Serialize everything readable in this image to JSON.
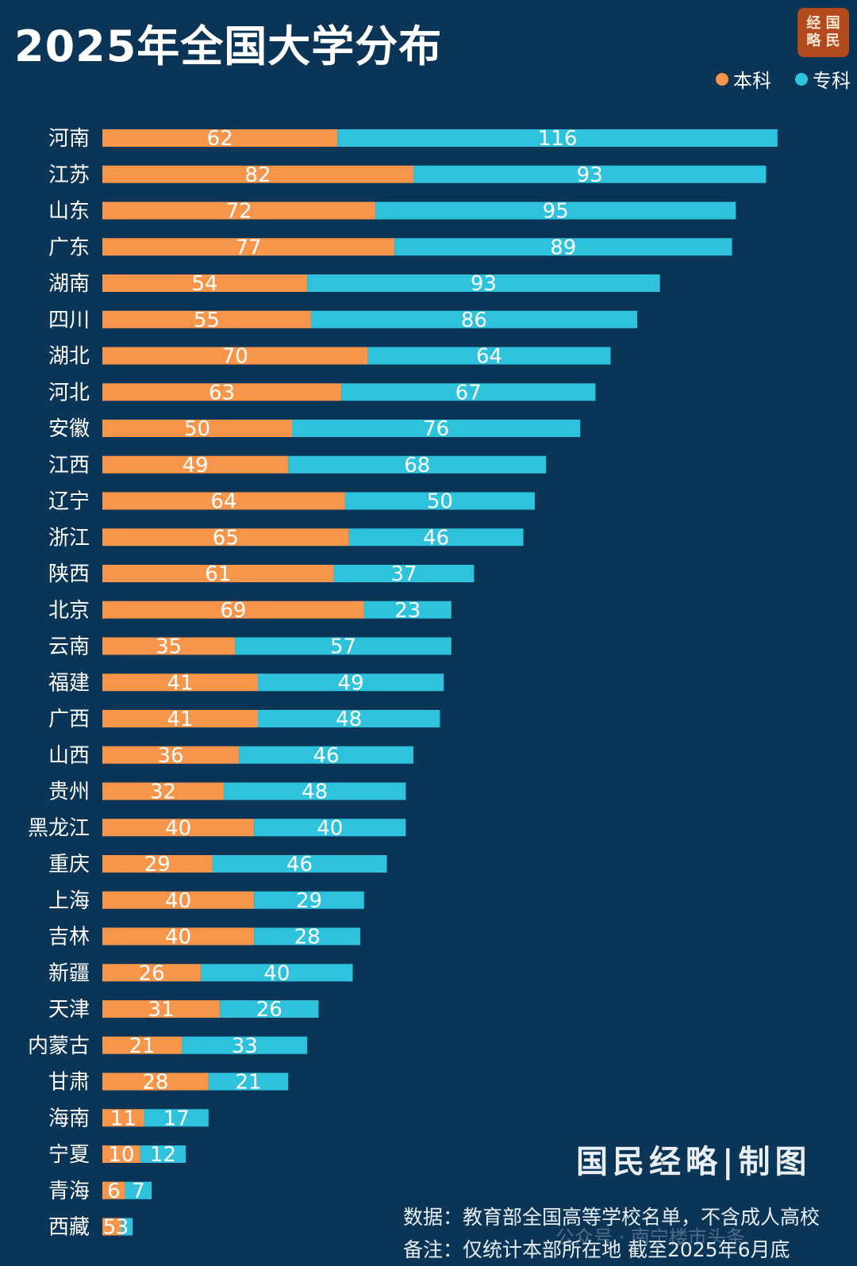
{
  "title": "2025年全国大学分布",
  "brand_seal": "经国略民",
  "signature": "国民经略|制图",
  "notes": {
    "source": "数据：教育部全国高等学校名单，不含成人高校",
    "remark": "备注：仅统计本部所在地 截至2025年6月底"
  },
  "watermark": "公众号 · 南宁楼市头条",
  "colors": {
    "background": "#0b3557",
    "undergrad": "#f7954a",
    "junior": "#2ec2dc"
  },
  "chart_data": {
    "type": "bar",
    "orientation": "horizontal",
    "stacked": true,
    "title": "2025年全国大学分布",
    "categories": [
      "河南",
      "江苏",
      "山东",
      "广东",
      "湖南",
      "四川",
      "湖北",
      "河北",
      "安徽",
      "江西",
      "辽宁",
      "浙江",
      "陕西",
      "北京",
      "云南",
      "福建",
      "广西",
      "山西",
      "贵州",
      "黑龙江",
      "重庆",
      "上海",
      "吉林",
      "新疆",
      "天津",
      "内蒙古",
      "甘肃",
      "海南",
      "宁夏",
      "青海",
      "西藏"
    ],
    "series": [
      {
        "name": "本科",
        "color": "#f7954a",
        "values": [
          62,
          82,
          72,
          77,
          54,
          55,
          70,
          63,
          50,
          49,
          64,
          65,
          61,
          69,
          35,
          41,
          41,
          36,
          32,
          40,
          29,
          40,
          40,
          26,
          31,
          21,
          28,
          11,
          10,
          6,
          5
        ]
      },
      {
        "name": "专科",
        "color": "#2ec2dc",
        "values": [
          116,
          93,
          95,
          89,
          93,
          86,
          64,
          67,
          76,
          68,
          50,
          46,
          37,
          23,
          57,
          49,
          48,
          46,
          48,
          40,
          46,
          29,
          28,
          40,
          26,
          33,
          21,
          17,
          12,
          7,
          3
        ]
      }
    ],
    "legend_position": "top-right",
    "xlim": [
      0,
      178
    ]
  }
}
